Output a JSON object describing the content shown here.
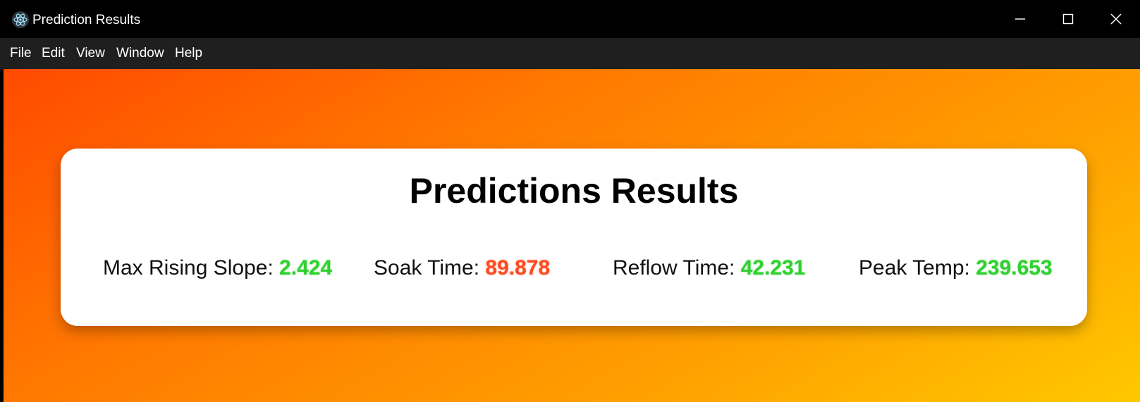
{
  "window": {
    "title": "Prediction Results",
    "icon": "electron-atom-icon"
  },
  "menu": {
    "items": [
      {
        "label": "File"
      },
      {
        "label": "Edit"
      },
      {
        "label": "View"
      },
      {
        "label": "Window"
      },
      {
        "label": "Help"
      }
    ]
  },
  "card": {
    "title": "Predictions Results",
    "metrics": [
      {
        "label": "Max Rising Slope:",
        "value": "2.424",
        "status": "good"
      },
      {
        "label": "Soak Time:",
        "value": "89.878",
        "status": "bad"
      },
      {
        "label": "Reflow Time:",
        "value": "42.231",
        "status": "good"
      },
      {
        "label": "Peak Temp:",
        "value": "239.653",
        "status": "good"
      }
    ]
  },
  "colors": {
    "good": "#2fd02f",
    "bad": "#ff4a1f",
    "gradient_start": "#ff4a00",
    "gradient_end": "#ffc800",
    "titlebar": "#000000",
    "menubar": "#1f1f1f"
  }
}
